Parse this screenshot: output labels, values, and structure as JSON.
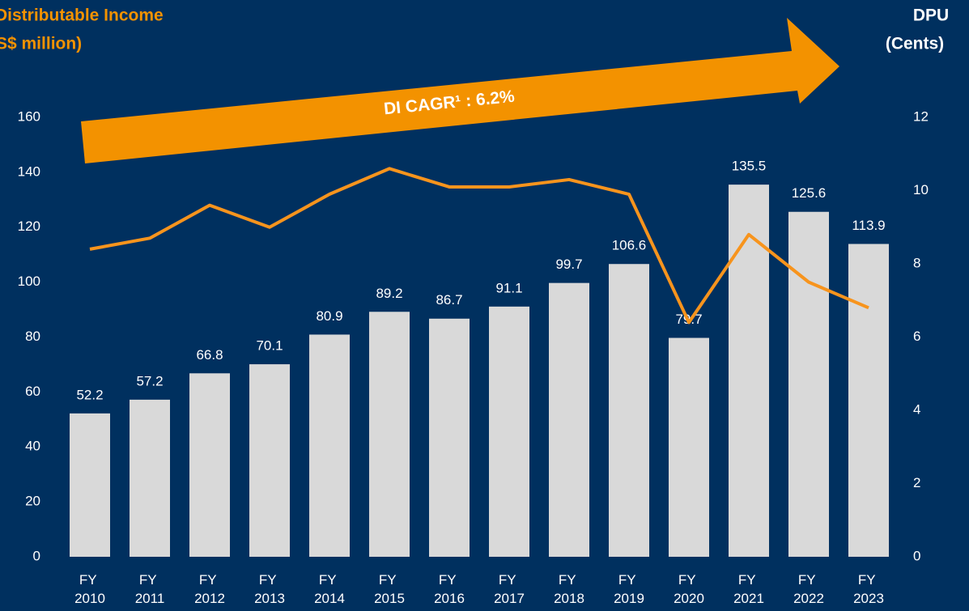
{
  "chart_data": {
    "type": "bar_line",
    "y_title": [
      "Distributable Income",
      "(S$ million)"
    ],
    "y2_title": [
      "DPU",
      "(Cents)"
    ],
    "annotation": "DI CAGR¹ : 6.2%",
    "categories": [
      "FY 2010",
      "FY 2011",
      "FY 2012",
      "FY 2013",
      "FY 2014",
      "FY 2015",
      "FY 2016",
      "FY 2017",
      "FY 2018",
      "FY 2019",
      "FY 2020",
      "FY 2021",
      "FY 2022",
      "FY 2023"
    ],
    "series": [
      {
        "name": "Distributable Income",
        "type": "bar",
        "color": "#d9d9d9",
        "data_labels": true,
        "values": [
          52.2,
          57.2,
          66.8,
          70.1,
          80.9,
          89.2,
          86.7,
          91.1,
          99.7,
          106.6,
          79.7,
          135.5,
          125.6,
          113.9
        ]
      },
      {
        "name": "DPU",
        "type": "line",
        "axis": "y2",
        "color": "#f7941d",
        "values": [
          8.4,
          8.7,
          9.6,
          9.0,
          9.9,
          10.6,
          10.1,
          10.1,
          10.3,
          9.9,
          6.4,
          8.8,
          7.5,
          6.8
        ]
      }
    ],
    "ylim": [
      0,
      160
    ],
    "yticks": [
      0,
      20,
      40,
      60,
      80,
      100,
      120,
      140,
      160
    ],
    "y2lim": [
      0,
      12
    ],
    "y2ticks": [
      0,
      2,
      4,
      6,
      8,
      10,
      12
    ],
    "annotation_color": "#f39200"
  }
}
